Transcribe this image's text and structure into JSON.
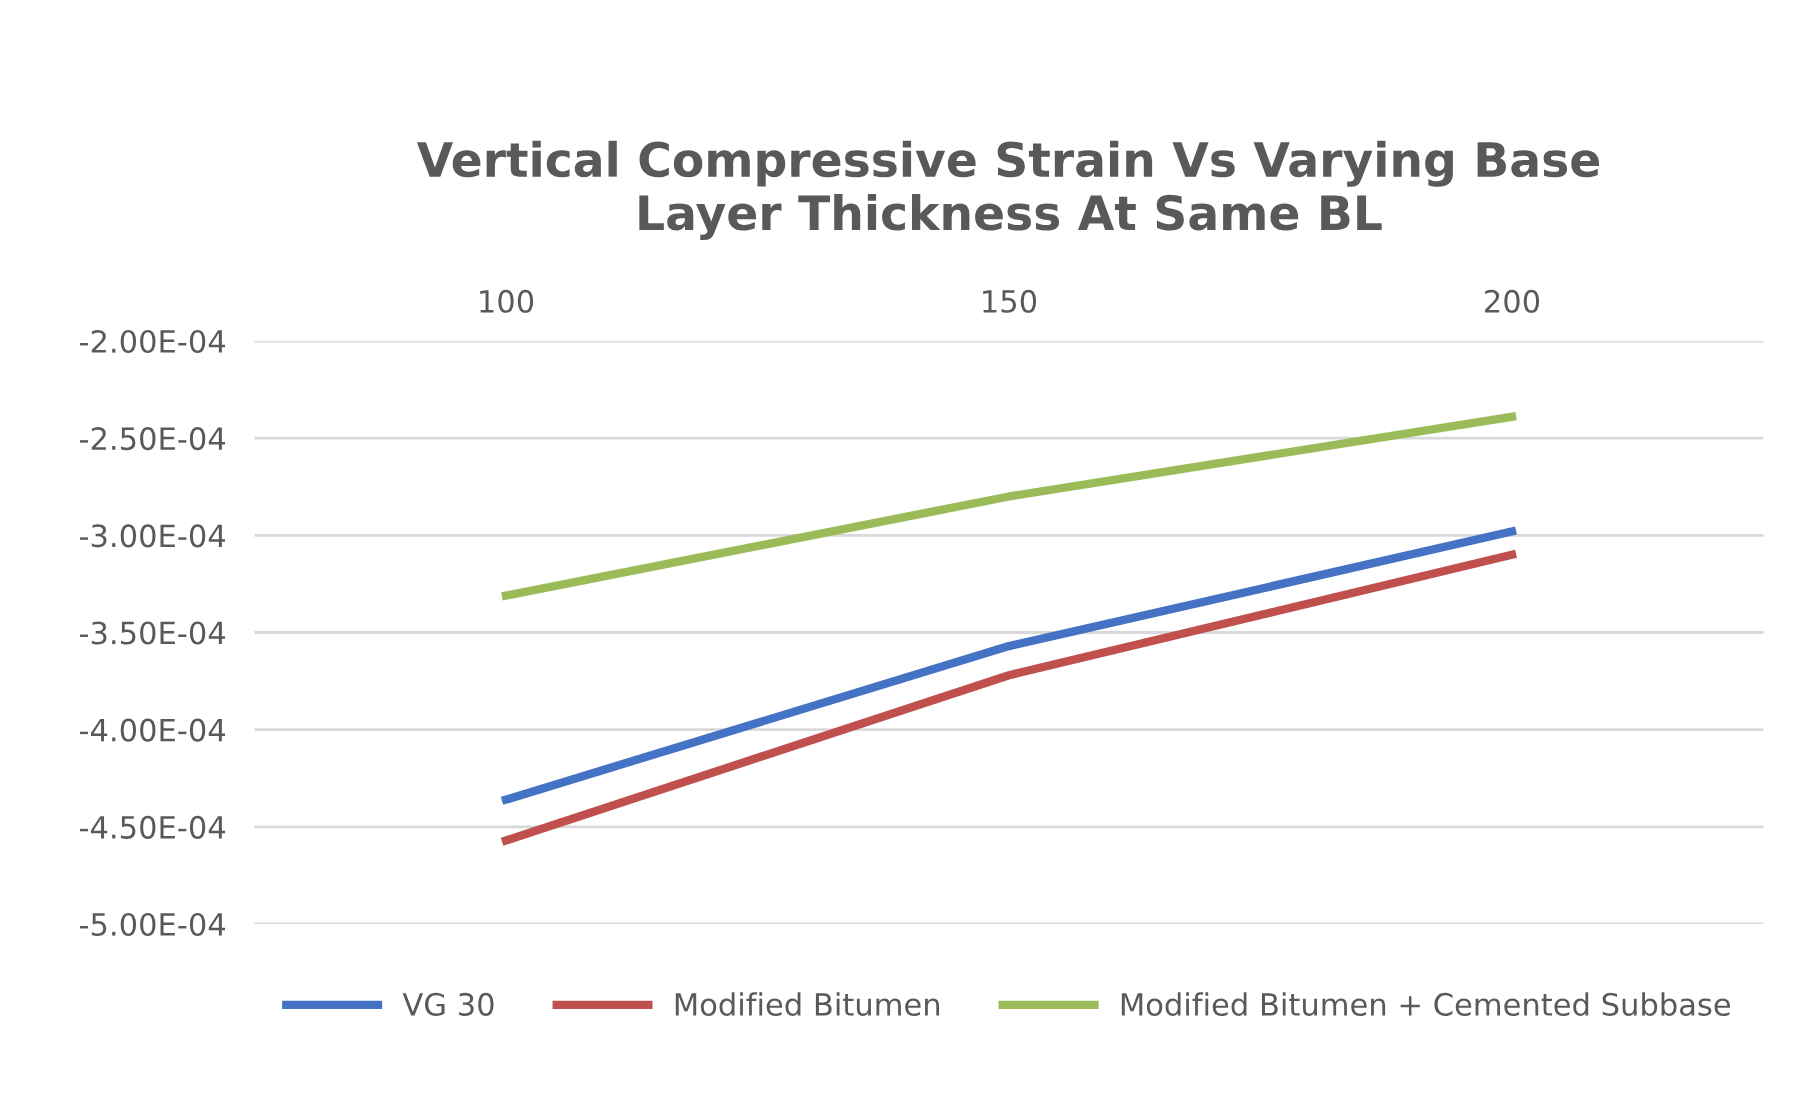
{
  "chart_data": {
    "type": "line",
    "title": "Vertical Compressive Strain Vs Varying Base\nLayer Thickness At Same BL",
    "categories": [
      "100",
      "150",
      "200"
    ],
    "series": [
      {
        "name": "VG 30",
        "color": "#4472c4",
        "values": [
          -0.000436,
          -0.000357,
          -0.000298
        ]
      },
      {
        "name": "Modified Bitumen",
        "color": "#c0504d",
        "values": [
          -0.000457,
          -0.000372,
          -0.00031
        ]
      },
      {
        "name": "Modified Bitumen + Cemented Subbase",
        "color": "#9bbb59",
        "values": [
          -0.000331,
          -0.00028,
          -0.000239
        ]
      }
    ],
    "ylim": [
      -0.0005,
      -0.0002
    ],
    "yticks": [
      {
        "value": -0.0005,
        "label": "-5.00E-04"
      },
      {
        "value": -0.00045,
        "label": "-4.50E-04"
      },
      {
        "value": -0.0004,
        "label": "-4.00E-04"
      },
      {
        "value": -0.00035,
        "label": "-3.50E-04"
      },
      {
        "value": -0.0003,
        "label": "-3.00E-04"
      },
      {
        "value": -0.00025,
        "label": "-2.50E-04"
      },
      {
        "value": -0.0002,
        "label": "-2.00E-04"
      }
    ],
    "grid": "y",
    "legend": "bottom",
    "marker": "none",
    "line_style": "solid"
  }
}
